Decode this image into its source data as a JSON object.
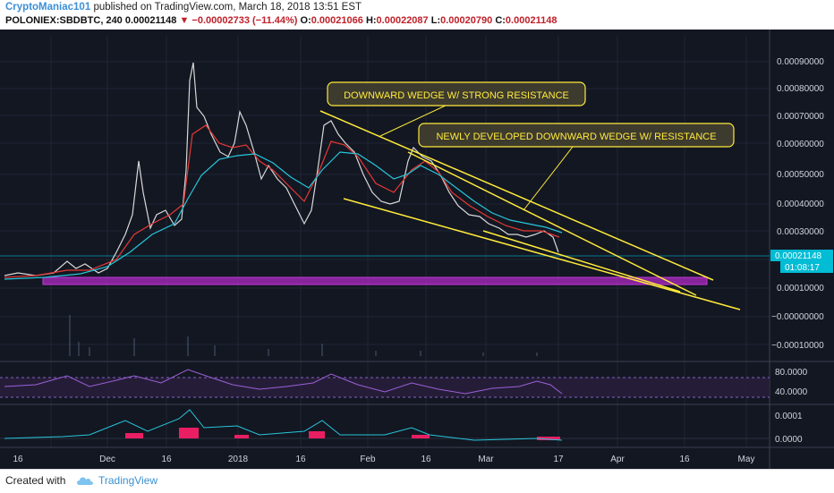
{
  "header": {
    "author": "CryptoManiac101",
    "published": "published on TradingView.com, March 18, 2018 13:51 EST",
    "symbol": "POLONIEX:SBDBTC, 240",
    "last": "0.00021148",
    "change": "−0.00002733 (−11.44%)",
    "o_label": "O:",
    "o_value": "0.00021066",
    "h_label": "H:",
    "h_value": "0.00022087",
    "l_label": "L:",
    "l_value": "0.00020790",
    "c_label": "C:",
    "c_value": "0.00021148"
  },
  "price_axis": {
    "ticks": [
      "0.00090000",
      "0.00080000",
      "0.00070000",
      "0.00060000",
      "0.00050000",
      "0.00040000",
      "0.00030000",
      "0.00020000",
      "0.00010000",
      "−0.00000000",
      "−0.00010000"
    ],
    "price_badge": "0.00021148",
    "time_badge": "01:08:17"
  },
  "rsi_axis": {
    "ticks": [
      "80.0000",
      "40.0000"
    ]
  },
  "macd_axis": {
    "ticks": [
      "0.0001",
      "0.0000"
    ]
  },
  "time_axis": {
    "ticks": [
      "16",
      "Dec",
      "16",
      "2018",
      "16",
      "Feb",
      "16",
      "Mar",
      "17",
      "Apr",
      "16",
      "May"
    ]
  },
  "annotations": {
    "callout1": "DOWNWARD WEDGE W/ STRONG RESISTANCE",
    "callout2": "NEWLY DEVELOPED DOWNWARD WEDGE W/ RESISTANCE"
  },
  "footer": {
    "created": "Created with",
    "brand": "TradingView"
  },
  "colors": {
    "background": "#131722",
    "wedge": "#ffeb3b",
    "support_band": "#9c27b0",
    "candle_up": "#e0e0e0",
    "ema_fast": "#e53935",
    "ema_slow": "#26c6da",
    "price_line": "#00bcd4"
  }
}
